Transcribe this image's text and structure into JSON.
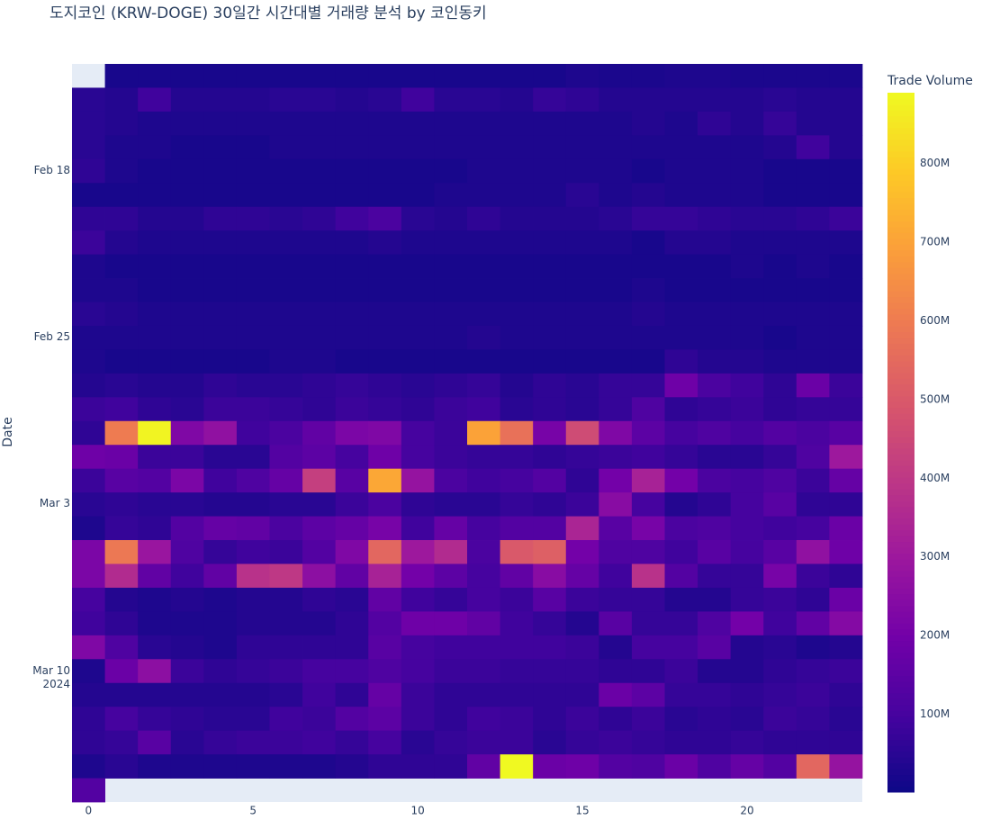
{
  "chart_data": {
    "type": "heatmap",
    "title": "도지코인 (KRW-DOGE) 30일간 시간대별 거래량 분석 by 코인동키",
    "y_label": "Date",
    "colorbar_title": "Trade Volume",
    "colorscale": [
      "#0d0887",
      "#46039f",
      "#7201a8",
      "#9c179e",
      "#bd3786",
      "#d8576b",
      "#ed7953",
      "#fb9f3a",
      "#fdca26",
      "#f0f921"
    ],
    "zlim": [
      1000000.0,
      890000000.0
    ],
    "zticks": [
      {
        "value": 100000000.0,
        "label": "100M"
      },
      {
        "value": 200000000.0,
        "label": "200M"
      },
      {
        "value": 300000000.0,
        "label": "300M"
      },
      {
        "value": 400000000.0,
        "label": "400M"
      },
      {
        "value": 500000000.0,
        "label": "500M"
      },
      {
        "value": 600000000.0,
        "label": "600M"
      },
      {
        "value": 700000000.0,
        "label": "700M"
      },
      {
        "value": 800000000.0,
        "label": "800M"
      }
    ],
    "xlim": [
      -0.5,
      23.5
    ],
    "xticks": [
      0,
      5,
      10,
      15,
      20
    ],
    "yticks": [
      {
        "value": "2024-02-18",
        "label": "Feb 18"
      },
      {
        "value": "2024-02-25",
        "label": "Feb 25"
      },
      {
        "value": "2024-03-03",
        "label": "Mar 3"
      },
      {
        "value": "2024-03-10",
        "label": "Mar 10\n2024"
      }
    ],
    "x": [
      0,
      1,
      2,
      3,
      4,
      5,
      6,
      7,
      8,
      9,
      10,
      11,
      12,
      13,
      14,
      15,
      16,
      17,
      18,
      19,
      20,
      21,
      22,
      23
    ],
    "y": [
      "2024-02-14",
      "2024-02-15",
      "2024-02-16",
      "2024-02-17",
      "2024-02-18",
      "2024-02-19",
      "2024-02-20",
      "2024-02-21",
      "2024-02-22",
      "2024-02-23",
      "2024-02-24",
      "2024-02-25",
      "2024-02-26",
      "2024-02-27",
      "2024-02-28",
      "2024-02-29",
      "2024-03-01",
      "2024-03-02",
      "2024-03-03",
      "2024-03-04",
      "2024-03-05",
      "2024-03-06",
      "2024-03-07",
      "2024-03-08",
      "2024-03-09",
      "2024-03-10",
      "2024-03-11",
      "2024-03-12",
      "2024-03-13",
      "2024-03-14",
      "2024-03-15"
    ],
    "z": [
      [
        null,
        20000000.0,
        20000000.0,
        20000000.0,
        20000000.0,
        20000000.0,
        20000000.0,
        20000000.0,
        20000000.0,
        20000000.0,
        20000000.0,
        20000000.0,
        20000000.0,
        20000000.0,
        20000000.0,
        30000000.0,
        25000000.0,
        25000000.0,
        30000000.0,
        30000000.0,
        25000000.0,
        25000000.0,
        25000000.0,
        25000000.0
      ],
      [
        50000000.0,
        40000000.0,
        90000000.0,
        40000000.0,
        40000000.0,
        40000000.0,
        50000000.0,
        50000000.0,
        40000000.0,
        50000000.0,
        90000000.0,
        50000000.0,
        50000000.0,
        40000000.0,
        70000000.0,
        60000000.0,
        40000000.0,
        40000000.0,
        40000000.0,
        40000000.0,
        40000000.0,
        50000000.0,
        40000000.0,
        40000000.0
      ],
      [
        50000000.0,
        40000000.0,
        30000000.0,
        30000000.0,
        30000000.0,
        30000000.0,
        30000000.0,
        30000000.0,
        30000000.0,
        30000000.0,
        30000000.0,
        30000000.0,
        30000000.0,
        30000000.0,
        30000000.0,
        30000000.0,
        30000000.0,
        40000000.0,
        30000000.0,
        60000000.0,
        40000000.0,
        70000000.0,
        40000000.0,
        40000000.0
      ],
      [
        50000000.0,
        30000000.0,
        30000000.0,
        20000000.0,
        20000000.0,
        20000000.0,
        30000000.0,
        30000000.0,
        30000000.0,
        30000000.0,
        30000000.0,
        30000000.0,
        30000000.0,
        30000000.0,
        30000000.0,
        30000000.0,
        30000000.0,
        30000000.0,
        30000000.0,
        30000000.0,
        30000000.0,
        40000000.0,
        90000000.0,
        40000000.0
      ],
      [
        60000000.0,
        30000000.0,
        20000000.0,
        20000000.0,
        20000000.0,
        20000000.0,
        20000000.0,
        20000000.0,
        20000000.0,
        20000000.0,
        20000000.0,
        20000000.0,
        30000000.0,
        30000000.0,
        30000000.0,
        30000000.0,
        30000000.0,
        20000000.0,
        30000000.0,
        30000000.0,
        30000000.0,
        20000000.0,
        20000000.0,
        20000000.0
      ],
      [
        20000000.0,
        20000000.0,
        20000000.0,
        20000000.0,
        20000000.0,
        20000000.0,
        20000000.0,
        20000000.0,
        20000000.0,
        20000000.0,
        20000000.0,
        30000000.0,
        30000000.0,
        30000000.0,
        30000000.0,
        50000000.0,
        30000000.0,
        40000000.0,
        30000000.0,
        30000000.0,
        30000000.0,
        20000000.0,
        20000000.0,
        20000000.0
      ],
      [
        60000000.0,
        60000000.0,
        40000000.0,
        40000000.0,
        60000000.0,
        60000000.0,
        50000000.0,
        60000000.0,
        90000000.0,
        110000000.0,
        50000000.0,
        40000000.0,
        60000000.0,
        40000000.0,
        40000000.0,
        40000000.0,
        50000000.0,
        70000000.0,
        70000000.0,
        60000000.0,
        50000000.0,
        50000000.0,
        60000000.0,
        80000000.0
      ],
      [
        80000000.0,
        40000000.0,
        30000000.0,
        30000000.0,
        30000000.0,
        30000000.0,
        30000000.0,
        30000000.0,
        30000000.0,
        40000000.0,
        30000000.0,
        30000000.0,
        30000000.0,
        30000000.0,
        30000000.0,
        30000000.0,
        30000000.0,
        20000000.0,
        40000000.0,
        40000000.0,
        30000000.0,
        30000000.0,
        30000000.0,
        30000000.0
      ],
      [
        30000000.0,
        20000000.0,
        20000000.0,
        20000000.0,
        20000000.0,
        20000000.0,
        20000000.0,
        20000000.0,
        20000000.0,
        20000000.0,
        20000000.0,
        20000000.0,
        20000000.0,
        20000000.0,
        20000000.0,
        20000000.0,
        20000000.0,
        20000000.0,
        20000000.0,
        20000000.0,
        30000000.0,
        20000000.0,
        30000000.0,
        20000000.0
      ],
      [
        30000000.0,
        30000000.0,
        20000000.0,
        20000000.0,
        20000000.0,
        20000000.0,
        20000000.0,
        20000000.0,
        20000000.0,
        20000000.0,
        20000000.0,
        20000000.0,
        20000000.0,
        20000000.0,
        20000000.0,
        20000000.0,
        20000000.0,
        30000000.0,
        20000000.0,
        20000000.0,
        20000000.0,
        20000000.0,
        20000000.0,
        20000000.0
      ],
      [
        50000000.0,
        40000000.0,
        30000000.0,
        30000000.0,
        30000000.0,
        30000000.0,
        30000000.0,
        30000000.0,
        30000000.0,
        30000000.0,
        30000000.0,
        30000000.0,
        30000000.0,
        30000000.0,
        30000000.0,
        30000000.0,
        30000000.0,
        40000000.0,
        30000000.0,
        30000000.0,
        30000000.0,
        30000000.0,
        30000000.0,
        30000000.0
      ],
      [
        30000000.0,
        30000000.0,
        30000000.0,
        30000000.0,
        30000000.0,
        30000000.0,
        30000000.0,
        30000000.0,
        30000000.0,
        30000000.0,
        30000000.0,
        30000000.0,
        40000000.0,
        30000000.0,
        30000000.0,
        30000000.0,
        30000000.0,
        30000000.0,
        30000000.0,
        30000000.0,
        30000000.0,
        20000000.0,
        30000000.0,
        30000000.0
      ],
      [
        30000000.0,
        20000000.0,
        20000000.0,
        20000000.0,
        20000000.0,
        20000000.0,
        30000000.0,
        30000000.0,
        20000000.0,
        20000000.0,
        20000000.0,
        20000000.0,
        20000000.0,
        20000000.0,
        20000000.0,
        20000000.0,
        20000000.0,
        20000000.0,
        60000000.0,
        40000000.0,
        40000000.0,
        30000000.0,
        30000000.0,
        30000000.0
      ],
      [
        40000000.0,
        50000000.0,
        40000000.0,
        40000000.0,
        60000000.0,
        50000000.0,
        50000000.0,
        60000000.0,
        70000000.0,
        60000000.0,
        50000000.0,
        60000000.0,
        70000000.0,
        40000000.0,
        60000000.0,
        50000000.0,
        70000000.0,
        70000000.0,
        190000000.0,
        110000000.0,
        90000000.0,
        60000000.0,
        180000000.0,
        80000000.0
      ],
      [
        80000000.0,
        90000000.0,
        60000000.0,
        50000000.0,
        80000000.0,
        80000000.0,
        70000000.0,
        60000000.0,
        80000000.0,
        70000000.0,
        60000000.0,
        80000000.0,
        90000000.0,
        50000000.0,
        60000000.0,
        50000000.0,
        70000000.0,
        120000000.0,
        60000000.0,
        70000000.0,
        80000000.0,
        60000000.0,
        70000000.0,
        70000000.0
      ],
      [
        60000000.0,
        600000000.0,
        880000000.0,
        230000000.0,
        270000000.0,
        90000000.0,
        110000000.0,
        160000000.0,
        220000000.0,
        230000000.0,
        100000000.0,
        80000000.0,
        700000000.0,
        570000000.0,
        210000000.0,
        460000000.0,
        230000000.0,
        150000000.0,
        100000000.0,
        120000000.0,
        100000000.0,
        130000000.0,
        110000000.0,
        140000000.0
      ],
      [
        190000000.0,
        180000000.0,
        80000000.0,
        80000000.0,
        50000000.0,
        50000000.0,
        130000000.0,
        150000000.0,
        100000000.0,
        190000000.0,
        100000000.0,
        80000000.0,
        70000000.0,
        70000000.0,
        60000000.0,
        70000000.0,
        80000000.0,
        90000000.0,
        70000000.0,
        50000000.0,
        50000000.0,
        70000000.0,
        120000000.0,
        300000000.0
      ],
      [
        80000000.0,
        140000000.0,
        130000000.0,
        220000000.0,
        90000000.0,
        120000000.0,
        170000000.0,
        420000000.0,
        140000000.0,
        710000000.0,
        280000000.0,
        110000000.0,
        90000000.0,
        100000000.0,
        130000000.0,
        60000000.0,
        200000000.0,
        330000000.0,
        200000000.0,
        110000000.0,
        100000000.0,
        120000000.0,
        80000000.0,
        170000000.0
      ],
      [
        50000000.0,
        60000000.0,
        50000000.0,
        50000000.0,
        40000000.0,
        40000000.0,
        50000000.0,
        50000000.0,
        80000000.0,
        110000000.0,
        60000000.0,
        50000000.0,
        50000000.0,
        70000000.0,
        60000000.0,
        80000000.0,
        250000000.0,
        100000000.0,
        40000000.0,
        60000000.0,
        100000000.0,
        140000000.0,
        60000000.0,
        60000000.0
      ],
      [
        30000000.0,
        70000000.0,
        60000000.0,
        130000000.0,
        170000000.0,
        160000000.0,
        110000000.0,
        150000000.0,
        170000000.0,
        210000000.0,
        90000000.0,
        170000000.0,
        100000000.0,
        130000000.0,
        130000000.0,
        340000000.0,
        140000000.0,
        210000000.0,
        110000000.0,
        120000000.0,
        100000000.0,
        90000000.0,
        100000000.0,
        180000000.0
      ],
      [
        220000000.0,
        590000000.0,
        290000000.0,
        120000000.0,
        70000000.0,
        90000000.0,
        80000000.0,
        130000000.0,
        230000000.0,
        540000000.0,
        300000000.0,
        360000000.0,
        110000000.0,
        500000000.0,
        520000000.0,
        200000000.0,
        120000000.0,
        120000000.0,
        90000000.0,
        140000000.0,
        100000000.0,
        140000000.0,
        270000000.0,
        190000000.0
      ],
      [
        220000000.0,
        360000000.0,
        160000000.0,
        90000000.0,
        160000000.0,
        380000000.0,
        400000000.0,
        260000000.0,
        160000000.0,
        330000000.0,
        200000000.0,
        150000000.0,
        100000000.0,
        160000000.0,
        250000000.0,
        170000000.0,
        90000000.0,
        380000000.0,
        130000000.0,
        70000000.0,
        70000000.0,
        210000000.0,
        80000000.0,
        60000000.0
      ],
      [
        100000000.0,
        40000000.0,
        30000000.0,
        40000000.0,
        30000000.0,
        40000000.0,
        40000000.0,
        60000000.0,
        50000000.0,
        160000000.0,
        90000000.0,
        70000000.0,
        100000000.0,
        80000000.0,
        140000000.0,
        80000000.0,
        70000000.0,
        70000000.0,
        40000000.0,
        40000000.0,
        70000000.0,
        80000000.0,
        60000000.0,
        180000000.0
      ],
      [
        90000000.0,
        60000000.0,
        30000000.0,
        30000000.0,
        30000000.0,
        40000000.0,
        40000000.0,
        40000000.0,
        60000000.0,
        130000000.0,
        190000000.0,
        190000000.0,
        160000000.0,
        90000000.0,
        70000000.0,
        40000000.0,
        140000000.0,
        70000000.0,
        70000000.0,
        120000000.0,
        200000000.0,
        90000000.0,
        160000000.0,
        240000000.0
      ],
      [
        230000000.0,
        120000000.0,
        50000000.0,
        40000000.0,
        30000000.0,
        60000000.0,
        60000000.0,
        60000000.0,
        60000000.0,
        140000000.0,
        100000000.0,
        90000000.0,
        90000000.0,
        90000000.0,
        90000000.0,
        80000000.0,
        40000000.0,
        100000000.0,
        100000000.0,
        140000000.0,
        40000000.0,
        50000000.0,
        30000000.0,
        40000000.0
      ],
      [
        30000000.0,
        180000000.0,
        260000000.0,
        80000000.0,
        60000000.0,
        70000000.0,
        80000000.0,
        100000000.0,
        100000000.0,
        120000000.0,
        100000000.0,
        80000000.0,
        80000000.0,
        70000000.0,
        70000000.0,
        70000000.0,
        60000000.0,
        60000000.0,
        80000000.0,
        40000000.0,
        40000000.0,
        60000000.0,
        70000000.0,
        80000000.0
      ],
      [
        40000000.0,
        40000000.0,
        40000000.0,
        40000000.0,
        40000000.0,
        40000000.0,
        50000000.0,
        90000000.0,
        60000000.0,
        170000000.0,
        80000000.0,
        60000000.0,
        60000000.0,
        60000000.0,
        60000000.0,
        60000000.0,
        180000000.0,
        150000000.0,
        70000000.0,
        70000000.0,
        60000000.0,
        70000000.0,
        80000000.0,
        60000000.0
      ],
      [
        60000000.0,
        100000000.0,
        70000000.0,
        60000000.0,
        50000000.0,
        50000000.0,
        90000000.0,
        80000000.0,
        130000000.0,
        150000000.0,
        80000000.0,
        60000000.0,
        90000000.0,
        80000000.0,
        60000000.0,
        80000000.0,
        60000000.0,
        80000000.0,
        50000000.0,
        60000000.0,
        50000000.0,
        80000000.0,
        70000000.0,
        50000000.0
      ],
      [
        60000000.0,
        70000000.0,
        140000000.0,
        50000000.0,
        70000000.0,
        80000000.0,
        80000000.0,
        90000000.0,
        70000000.0,
        100000000.0,
        50000000.0,
        70000000.0,
        80000000.0,
        80000000.0,
        50000000.0,
        70000000.0,
        80000000.0,
        70000000.0,
        60000000.0,
        60000000.0,
        70000000.0,
        60000000.0,
        60000000.0,
        60000000.0
      ],
      [
        30000000.0,
        50000000.0,
        30000000.0,
        30000000.0,
        30000000.0,
        30000000.0,
        30000000.0,
        30000000.0,
        40000000.0,
        60000000.0,
        60000000.0,
        60000000.0,
        160000000.0,
        890000000.0,
        180000000.0,
        190000000.0,
        130000000.0,
        120000000.0,
        180000000.0,
        120000000.0,
        170000000.0,
        130000000.0,
        540000000.0,
        280000000.0
      ],
      [
        130000000.0,
        null,
        null,
        null,
        null,
        null,
        null,
        null,
        null,
        null,
        null,
        null,
        null,
        null,
        null,
        null,
        null,
        null,
        null,
        null,
        null,
        null,
        null,
        null
      ]
    ]
  }
}
